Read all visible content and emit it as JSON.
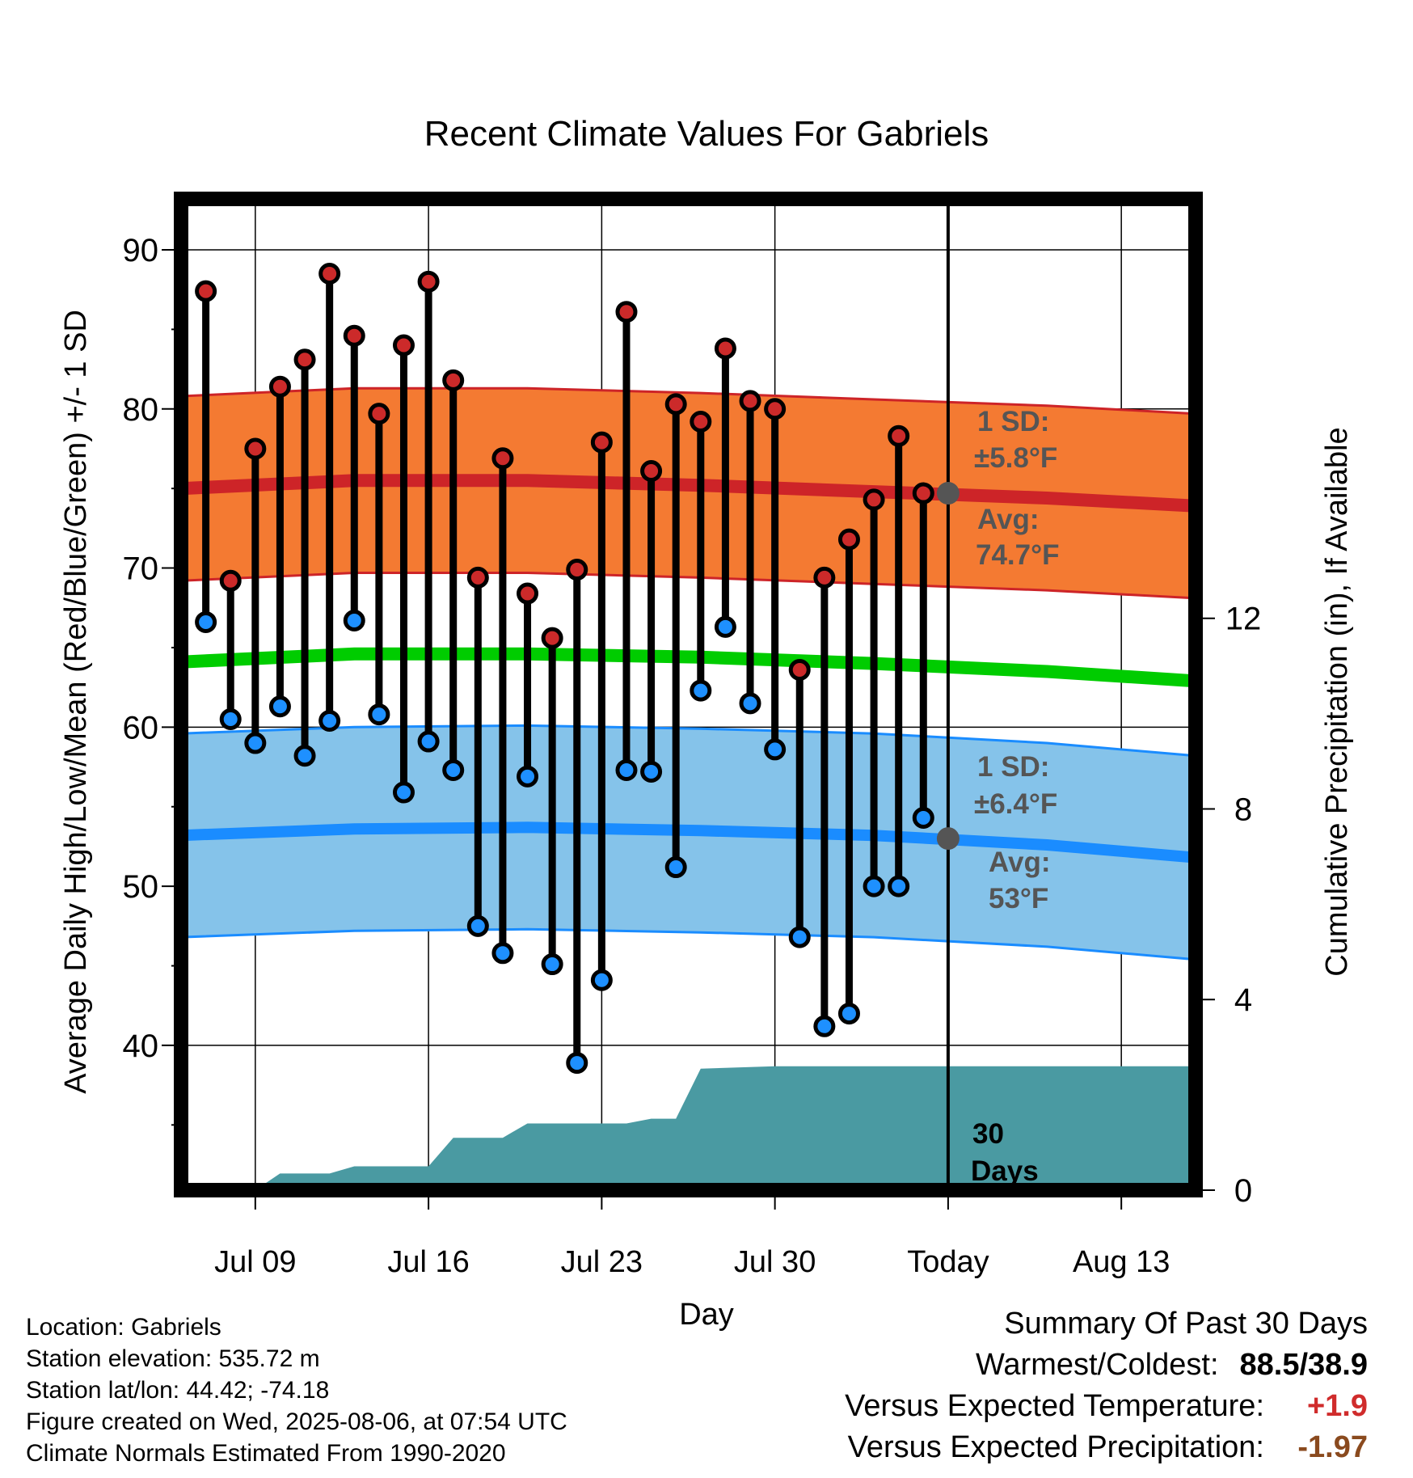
{
  "chart_data": {
    "type": "line",
    "title": "Recent Climate Values For Gabriels",
    "xlabel": "Day",
    "ylabel": "Average Daily High/Low/Mean (Red/Blue/Green) +/- 1 SD",
    "y2label": "Cumulative Precipitation (in), If Available",
    "ylim": [
      30.9,
      93.2
    ],
    "y2lim": [
      0,
      20.8
    ],
    "yticks": [
      40,
      50,
      60,
      70,
      80,
      90
    ],
    "y2ticks": [
      0,
      4,
      8,
      12
    ],
    "x_tick_labels": [
      "Jul 09",
      "Jul 16",
      "Jul 23",
      "Jul 30",
      "Today",
      "Aug 13"
    ],
    "x_ticks": [
      "2025-07-09",
      "2025-07-16",
      "2025-07-23",
      "2025-07-30",
      "2025-08-06",
      "2025-08-13"
    ],
    "xlim": [
      "2025-07-06",
      "2025-08-16"
    ],
    "grid": true,
    "highs": {
      "dates": [
        "2025-07-07",
        "2025-07-08",
        "2025-07-09",
        "2025-07-10",
        "2025-07-11",
        "2025-07-12",
        "2025-07-13",
        "2025-07-14",
        "2025-07-15",
        "2025-07-16",
        "2025-07-17",
        "2025-07-18",
        "2025-07-19",
        "2025-07-20",
        "2025-07-21",
        "2025-07-22",
        "2025-07-23",
        "2025-07-24",
        "2025-07-25",
        "2025-07-26",
        "2025-07-27",
        "2025-07-28",
        "2025-07-29",
        "2025-07-30",
        "2025-07-31",
        "2025-08-01",
        "2025-08-02",
        "2025-08-03",
        "2025-08-04",
        "2025-08-05"
      ],
      "values": [
        87.4,
        69.2,
        77.5,
        81.4,
        83.1,
        88.5,
        84.6,
        79.7,
        84.0,
        88.0,
        81.8,
        69.4,
        76.9,
        68.4,
        65.6,
        69.9,
        77.9,
        86.1,
        76.1,
        80.3,
        79.2,
        83.8,
        80.5,
        80.0,
        63.6,
        69.4,
        71.8,
        74.3,
        78.3,
        74.7
      ]
    },
    "lows": {
      "dates": [
        "2025-07-07",
        "2025-07-08",
        "2025-07-09",
        "2025-07-10",
        "2025-07-11",
        "2025-07-12",
        "2025-07-13",
        "2025-07-14",
        "2025-07-15",
        "2025-07-16",
        "2025-07-17",
        "2025-07-18",
        "2025-07-19",
        "2025-07-20",
        "2025-07-21",
        "2025-07-22",
        "2025-07-23",
        "2025-07-24",
        "2025-07-25",
        "2025-07-26",
        "2025-07-27",
        "2025-07-28",
        "2025-07-29",
        "2025-07-30",
        "2025-07-31",
        "2025-08-01",
        "2025-08-02",
        "2025-08-03",
        "2025-08-04",
        "2025-08-05"
      ],
      "values": [
        66.6,
        60.5,
        59.0,
        61.3,
        58.2,
        60.4,
        66.7,
        60.8,
        55.9,
        59.1,
        57.3,
        47.5,
        45.8,
        56.9,
        45.1,
        38.9,
        44.1,
        57.3,
        57.2,
        51.2,
        62.3,
        66.3,
        61.5,
        58.6,
        46.8,
        41.2,
        42.0,
        50.0,
        50.0,
        54.3
      ]
    },
    "normal_high": {
      "dates": [
        "2025-07-06",
        "2025-07-13",
        "2025-07-20",
        "2025-07-27",
        "2025-08-03",
        "2025-08-10",
        "2025-08-16"
      ],
      "values": [
        75.0,
        75.5,
        75.5,
        75.2,
        74.8,
        74.4,
        73.9
      ],
      "sd": 5.8
    },
    "normal_low": {
      "dates": [
        "2025-07-06",
        "2025-07-13",
        "2025-07-20",
        "2025-07-27",
        "2025-08-03",
        "2025-08-10",
        "2025-08-16"
      ],
      "values": [
        53.2,
        53.6,
        53.7,
        53.5,
        53.2,
        52.6,
        51.8
      ],
      "sd": 6.4
    },
    "normal_mean": {
      "dates": [
        "2025-07-06",
        "2025-07-13",
        "2025-07-20",
        "2025-07-27",
        "2025-08-03",
        "2025-08-10",
        "2025-08-16"
      ],
      "values": [
        64.1,
        64.6,
        64.6,
        64.4,
        64.0,
        63.5,
        62.9
      ]
    },
    "precip_cumulative": {
      "dates": [
        "2025-07-06",
        "2025-07-09",
        "2025-07-10",
        "2025-07-12",
        "2025-07-13",
        "2025-07-16",
        "2025-07-17",
        "2025-07-19",
        "2025-07-20",
        "2025-07-24",
        "2025-07-25",
        "2025-07-26",
        "2025-07-27",
        "2025-07-30",
        "2025-08-16"
      ],
      "values": [
        0,
        0,
        0.35,
        0.35,
        0.5,
        0.5,
        1.1,
        1.1,
        1.4,
        1.4,
        1.5,
        1.5,
        2.55,
        2.6,
        2.6
      ]
    },
    "annotations": {
      "high_sd": "1 SD:",
      "high_sd_val": "±5.8°F",
      "high_avg": "Avg:",
      "high_avg_val": "74.7°F",
      "low_sd": "1 SD:",
      "low_sd_val": "±6.4°F",
      "low_avg": "Avg:",
      "low_avg_val": "53°F",
      "days_num": "30",
      "days_word": "Days"
    },
    "colors": {
      "high_band": "#f47a32",
      "high_line": "#cd2428",
      "low_band": "#85c3ea",
      "low_line": "#1a8cff",
      "mean_line": "#00cc00",
      "precip": "#4a9aa2",
      "high_dot": "#cc2a2a",
      "low_dot": "#1e90ff",
      "avg_marker": "#555555",
      "annotation_text": "#555555"
    }
  },
  "footer": {
    "location": "Location: Gabriels",
    "elevation": "Station elevation: 535.72 m",
    "latlon": "Station lat/lon: 44.42; -74.18",
    "created": "Figure created on Wed, 2025-08-06, at 07:54 UTC",
    "normals": "Climate Normals Estimated From 1990-2020"
  },
  "summary": {
    "title": "Summary Of Past 30 Days",
    "warm_cold_label": "Warmest/Coldest:",
    "warm_cold_value": "88.5/38.9",
    "temp_label": "Versus Expected Temperature:",
    "temp_value": "+1.9",
    "precip_label": "Versus Expected Precipitation:",
    "precip_value": "-1.97"
  }
}
